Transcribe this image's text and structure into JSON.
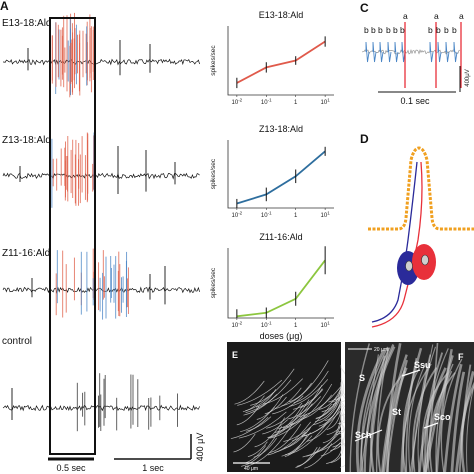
{
  "panels": {
    "A": "A",
    "C": "C",
    "D": "D",
    "E": "E",
    "F": "F"
  },
  "panelA": {
    "traces": [
      {
        "label": "E13-18:Ald"
      },
      {
        "label": "Z13-18:Ald"
      },
      {
        "label": "Z11-16:Ald"
      },
      {
        "label": "control"
      }
    ],
    "scalebar_window": "0.5 sec",
    "scalebar_time": "1 sec",
    "scalebar_voltage": "400 μV"
  },
  "chart_data": [
    {
      "type": "line",
      "title": "E13-18:Ald",
      "ylabel": "spikes/sec",
      "xlabel": "",
      "x_scale": "log",
      "x": [
        0.01,
        0.1,
        1,
        10
      ],
      "x_tick_labels": [
        "10-2",
        "10-1",
        "1",
        "101"
      ],
      "y": [
        7,
        16,
        20,
        31
      ],
      "error": [
        3,
        3,
        2.5,
        3
      ],
      "color": "#e05a4b",
      "ylim": [
        0,
        40
      ]
    },
    {
      "type": "line",
      "title": "Z13-18:Ald",
      "ylabel": "spikes/sec",
      "xlabel": "",
      "x_scale": "log",
      "x": [
        0.01,
        0.1,
        1,
        10
      ],
      "x_tick_labels": [
        "10-2",
        "10-1",
        "1",
        "101"
      ],
      "y": [
        2,
        6,
        14,
        25
      ],
      "error": [
        2,
        3,
        3,
        2
      ],
      "color": "#2e6e9e",
      "ylim": [
        0,
        30
      ]
    },
    {
      "type": "line",
      "title": "Z11-16:Ald",
      "ylabel": "spikes/sec",
      "xlabel": "doses (μg)",
      "x_scale": "log",
      "x": [
        0.01,
        0.1,
        1,
        10
      ],
      "x_tick_labels": [
        "10-2",
        "10-1",
        "1",
        "101"
      ],
      "y": [
        1,
        3,
        11,
        33
      ],
      "error": [
        4,
        3,
        4,
        8
      ],
      "color": "#8cc63f",
      "ylim": [
        0,
        40
      ]
    }
  ],
  "panelC": {
    "labels_b": [
      "b",
      "b",
      "b",
      "b",
      "b",
      "b",
      "b",
      "b",
      "b",
      "b"
    ],
    "labels_a": [
      "a",
      "a",
      "a"
    ],
    "scale_time": "0.1 sec",
    "scale_voltage": "400μV"
  },
  "panelE": {
    "scale": "40 μm"
  },
  "panelF": {
    "scale": "20 μm",
    "labels": [
      "S",
      "Ssu",
      "St",
      "Sco",
      "Sch"
    ]
  },
  "colors": {
    "red_cell": "#e8303a",
    "blue_cell": "#2a2a9a",
    "cuticle": "#f0a020",
    "trace_red": "#e0604a",
    "trace_blue": "#4a86c6"
  }
}
